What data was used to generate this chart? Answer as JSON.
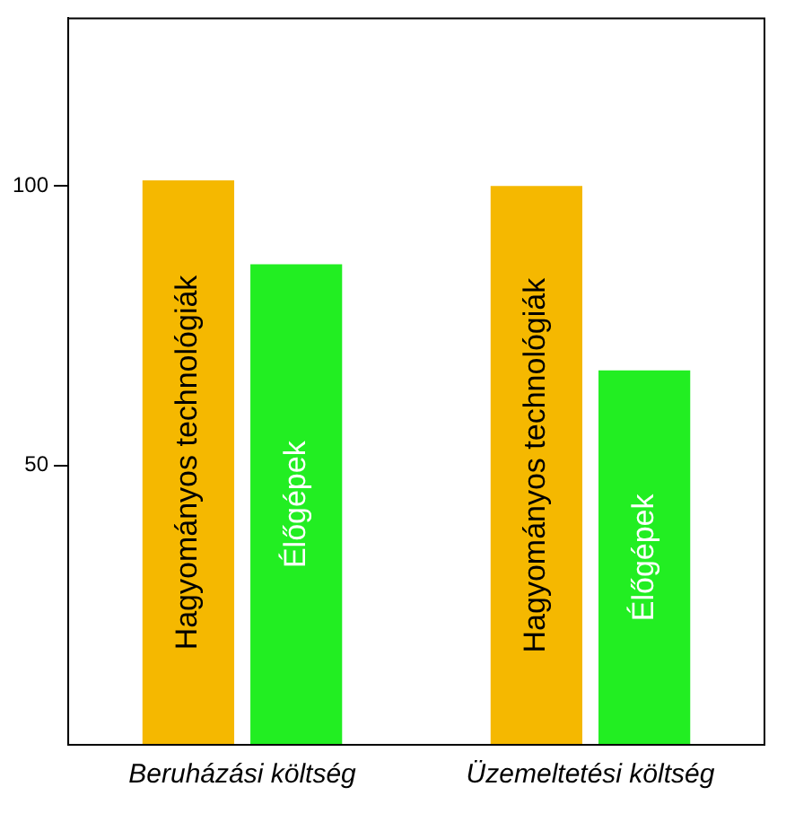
{
  "chart_data": {
    "type": "bar",
    "categories": [
      "Beruházási költség",
      "Üzemeltetési költség"
    ],
    "series": [
      {
        "name": "Hagyományos technológiák",
        "color": "#f5b800",
        "values": [
          101,
          100
        ]
      },
      {
        "name": "Élőgépek",
        "color": "#22ee22",
        "values": [
          86,
          67
        ]
      }
    ],
    "ylim": [
      0,
      130
    ],
    "yticks": [
      50,
      100
    ],
    "grid": false,
    "legend": false
  }
}
